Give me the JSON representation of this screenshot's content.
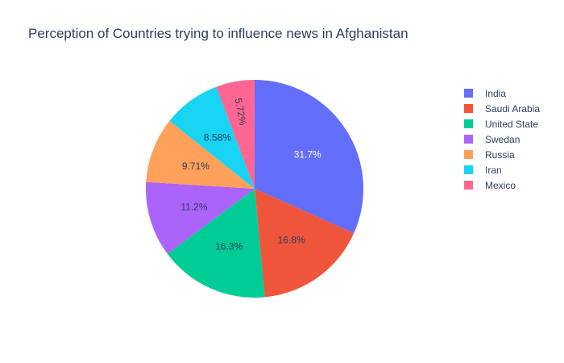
{
  "chart_data": {
    "type": "pie",
    "title": "Perception of Countries trying to influence news in Afghanistan",
    "categories": [
      "India",
      "Saudi Arabia",
      "United State",
      "Swedan",
      "Russia",
      "Iran",
      "Mexico"
    ],
    "values": [
      31.7,
      16.8,
      16.3,
      11.2,
      9.71,
      8.58,
      5.72
    ],
    "labels": [
      "31.7%",
      "16.8%",
      "16.3%",
      "11.2%",
      "9.71%",
      "8.58%",
      "5.72%"
    ],
    "colors": [
      "#636efa",
      "#EF553B",
      "#00cc96",
      "#ab63fa",
      "#FFA15A",
      "#19d3f3",
      "#FF6692"
    ],
    "label_colors": [
      "#ffffff",
      "#2a3f5f",
      "#2a3f5f",
      "#2a3f5f",
      "#2a3f5f",
      "#2a3f5f",
      "#2a3f5f"
    ],
    "direction": "clockwise",
    "rotation_start": "top",
    "legend_position": "top-right"
  }
}
